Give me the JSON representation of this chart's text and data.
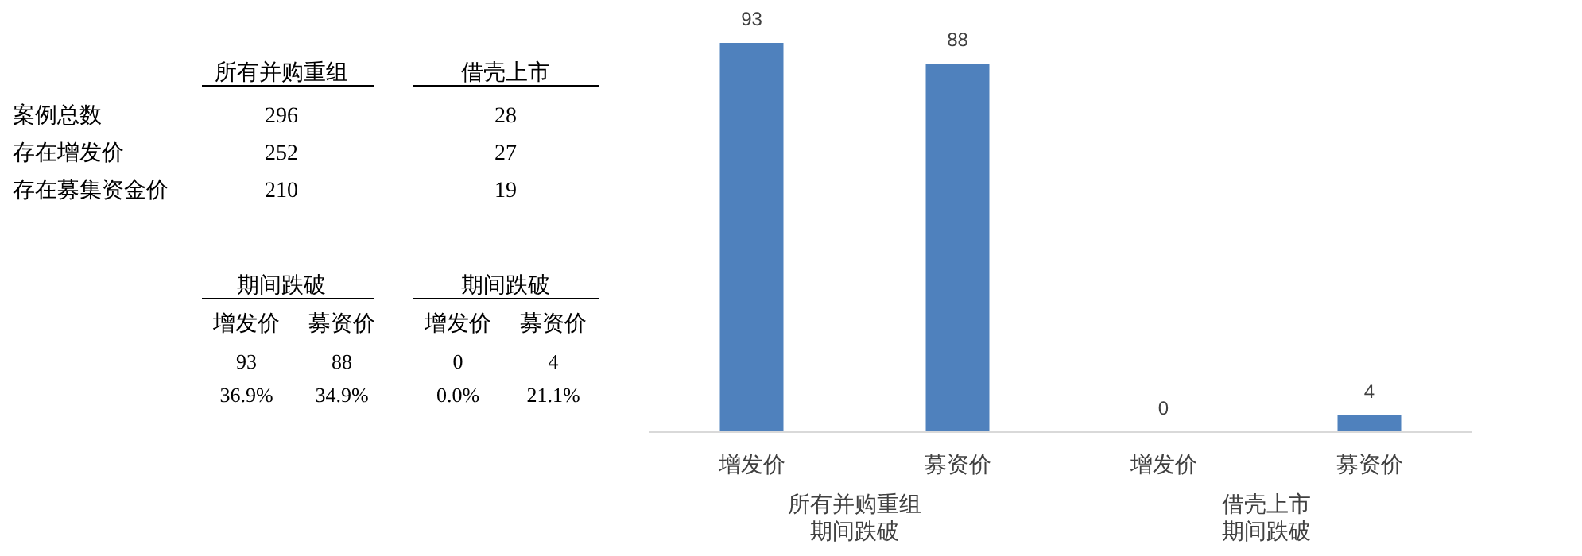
{
  "chart_data": [
    {
      "type": "other",
      "annotations": [
        "所有并购重组",
        "借壳上市",
        "案例总数",
        "296",
        "28",
        "存在增发价",
        "252",
        "27",
        "存在募集资金价",
        "210",
        "19"
      ]
    },
    {
      "type": "other",
      "annotations": [
        "期间跌破",
        "期间跌破",
        "增发价",
        "募资价",
        "增发价",
        "募资价",
        "93",
        "88",
        "0",
        "4",
        "36.9%",
        "34.9%",
        "0.0%",
        "21.1%"
      ]
    },
    {
      "type": "bar",
      "categories": [
        "增发价",
        "募资价",
        "增发价",
        "募资价"
      ],
      "values": [
        93,
        88,
        0,
        4
      ],
      "color": "#4f81bd",
      "data_labels": true,
      "annotations": [
        "所有并购重组",
        "期间跌破",
        "借壳上市",
        "期间跌破"
      ]
    }
  ]
}
